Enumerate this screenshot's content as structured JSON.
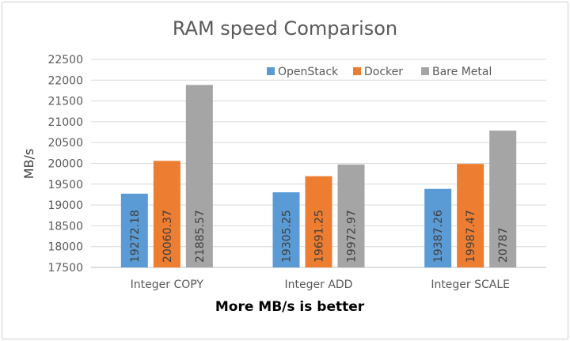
{
  "chart_data": {
    "type": "bar",
    "title": "RAM speed Comparison",
    "xlabel": "More MB/s is better",
    "ylabel": "MB/s",
    "ylim": [
      17500,
      22500
    ],
    "yticks": [
      17500,
      18000,
      18500,
      19000,
      19500,
      20000,
      20500,
      21000,
      21500,
      22000,
      22500
    ],
    "categories": [
      "Integer COPY",
      "Integer ADD",
      "Integer SCALE"
    ],
    "series": [
      {
        "name": "OpenStack",
        "color": "#5b9bd5",
        "values": [
          19272.18,
          19305.25,
          19387.26
        ],
        "labels": [
          "19272.18",
          "19305.25",
          "19387.26"
        ]
      },
      {
        "name": "Docker",
        "color": "#ed7d31",
        "values": [
          20060.37,
          19691.25,
          19987.47
        ],
        "labels": [
          "20060.37",
          "19691.25",
          "19987.47"
        ]
      },
      {
        "name": "Bare Metal",
        "color": "#a5a5a5",
        "values": [
          21885.57,
          19972.97,
          20787
        ],
        "labels": [
          "21885.57",
          "19972.97",
          "20787"
        ]
      }
    ],
    "grid": true,
    "legend_position": "top-right",
    "data_labels": "inside-vertical"
  }
}
